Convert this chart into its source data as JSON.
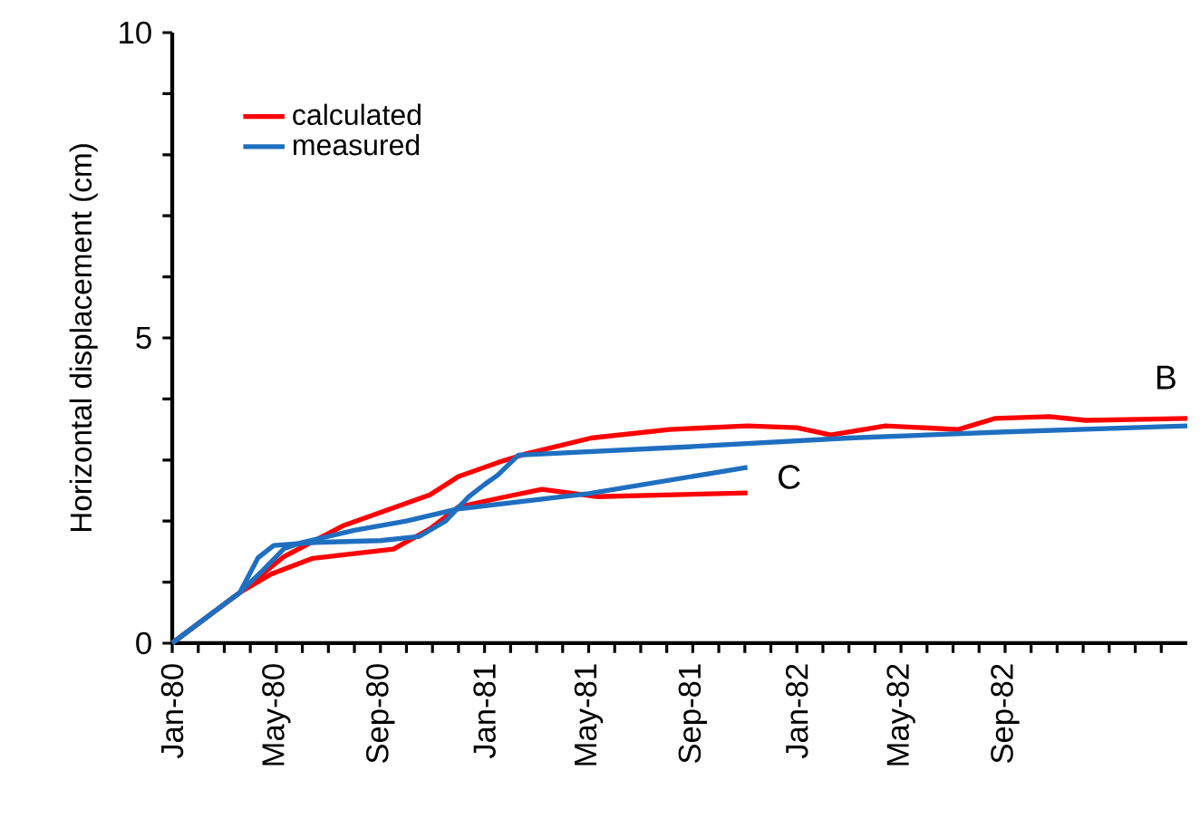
{
  "chart_data": {
    "type": "line",
    "ylabel": "Horizontal displacement (cm)",
    "xlim": [
      "1980-01",
      "1983-04"
    ],
    "ylim": [
      0,
      10
    ],
    "yticks": [
      0,
      {
        "value": 1,
        "label": null
      },
      {
        "value": 2,
        "label": null
      },
      {
        "value": 3,
        "label": null
      },
      {
        "value": 4,
        "label": null
      },
      5,
      {
        "value": 6,
        "label": null
      },
      {
        "value": 7,
        "label": null
      },
      {
        "value": 8,
        "label": null
      },
      {
        "value": 9,
        "label": null
      },
      10
    ],
    "xticks": [
      {
        "value": "1980-01",
        "label": "Jan-80"
      },
      {
        "value": "1980-02",
        "label": null
      },
      {
        "value": "1980-03",
        "label": null
      },
      {
        "value": "1980-04",
        "label": null
      },
      {
        "value": "1980-05",
        "label": "May-80"
      },
      {
        "value": "1980-06",
        "label": null
      },
      {
        "value": "1980-07",
        "label": null
      },
      {
        "value": "1980-08",
        "label": null
      },
      {
        "value": "1980-09",
        "label": "Sep-80"
      },
      {
        "value": "1980-10",
        "label": null
      },
      {
        "value": "1980-11",
        "label": null
      },
      {
        "value": "1980-12",
        "label": null
      },
      {
        "value": "1981-01",
        "label": "Jan-81"
      },
      {
        "value": "1981-02",
        "label": null
      },
      {
        "value": "1981-03",
        "label": null
      },
      {
        "value": "1981-04",
        "label": null
      },
      {
        "value": "1981-05",
        "label": "May-81"
      },
      {
        "value": "1981-06",
        "label": null
      },
      {
        "value": "1981-07",
        "label": null
      },
      {
        "value": "1981-08",
        "label": null
      },
      {
        "value": "1981-09",
        "label": "Sep-81"
      },
      {
        "value": "1981-10",
        "label": null
      },
      {
        "value": "1981-11",
        "label": null
      },
      {
        "value": "1981-12",
        "label": null
      },
      {
        "value": "1982-01",
        "label": "Jan-82"
      },
      {
        "value": "1982-02",
        "label": null
      },
      {
        "value": "1982-03",
        "label": null
      },
      {
        "value": "1982-04",
        "label": null
      },
      {
        "value": "1982-05",
        "label": "May-82"
      },
      {
        "value": "1982-06",
        "label": null
      },
      {
        "value": "1982-07",
        "label": null
      },
      {
        "value": "1982-08",
        "label": null
      },
      {
        "value": "1982-09",
        "label": "Sep-82"
      },
      {
        "value": "1982-10",
        "label": null
      },
      {
        "value": "1982-11",
        "label": null
      },
      {
        "value": "1982-12",
        "label": null
      },
      {
        "value": "1983-01",
        "label": null
      },
      {
        "value": "1983-02",
        "label": null
      },
      {
        "value": "1983-03",
        "label": null
      }
    ],
    "legend": "top left",
    "series": [
      {
        "name": "calculated",
        "color": "#ff0000",
        "x": [
          "1980-01-01",
          "1980-03-19",
          "1980-05-10",
          "1980-07-19",
          "1980-10-28",
          "1980-12-01",
          "1981-01-19",
          "1981-02-16",
          "1981-05-04",
          "1981-08-04",
          "1981-11-04",
          "1982-01-01",
          "1982-02-10",
          "1982-04-13",
          "1982-07-07",
          "1982-08-19",
          "1982-10-22",
          "1982-12-04",
          "1983-04-01"
        ],
        "values": [
          0,
          0.83,
          1.42,
          1.93,
          2.43,
          2.73,
          2.97,
          3.09,
          3.36,
          3.5,
          3.56,
          3.53,
          3.41,
          3.56,
          3.5,
          3.68,
          3.71,
          3.65,
          3.68
        ]
      },
      {
        "color": "#ff0000",
        "x": [
          "1980-01-01",
          "1980-03-19",
          "1980-04-25",
          "1980-06-13",
          "1980-09-16",
          "1980-10-28",
          "1980-12-01",
          "1981-01-16",
          "1981-03-07",
          "1981-05-10",
          "1981-11-04"
        ],
        "values": [
          0,
          0.83,
          1.13,
          1.39,
          1.54,
          1.87,
          2.23,
          2.37,
          2.52,
          2.4,
          2.46
        ]
      },
      {
        "name": "measured",
        "color": "#1f6fc0",
        "x": [
          "1980-01-01",
          "1980-03-19",
          "1980-04-10",
          "1980-04-28",
          "1980-06-16",
          "1980-09-01",
          "1980-10-16",
          "1980-11-16",
          "1980-12-13",
          "1981-01-01",
          "1981-01-16",
          "1981-02-10",
          "1981-09-01",
          "1982-03-01",
          "1982-09-01",
          "1983-04-01"
        ],
        "values": [
          0,
          0.83,
          1.4,
          1.6,
          1.65,
          1.68,
          1.75,
          2.0,
          2.4,
          2.6,
          2.75,
          3.08,
          3.22,
          3.36,
          3.46,
          3.56
        ]
      },
      {
        "color": "#1f6fc0",
        "x": [
          "1980-01-01",
          "1980-03-19",
          "1980-04-16",
          "1980-05-10",
          "1980-06-01",
          "1980-08-01",
          "1980-10-01",
          "1980-12-01",
          "1981-05-01",
          "1981-11-04"
        ],
        "values": [
          0,
          0.83,
          1.2,
          1.55,
          1.65,
          1.85,
          2.0,
          2.2,
          2.45,
          2.88
        ]
      }
    ],
    "annotations": [
      "B",
      "C"
    ]
  }
}
